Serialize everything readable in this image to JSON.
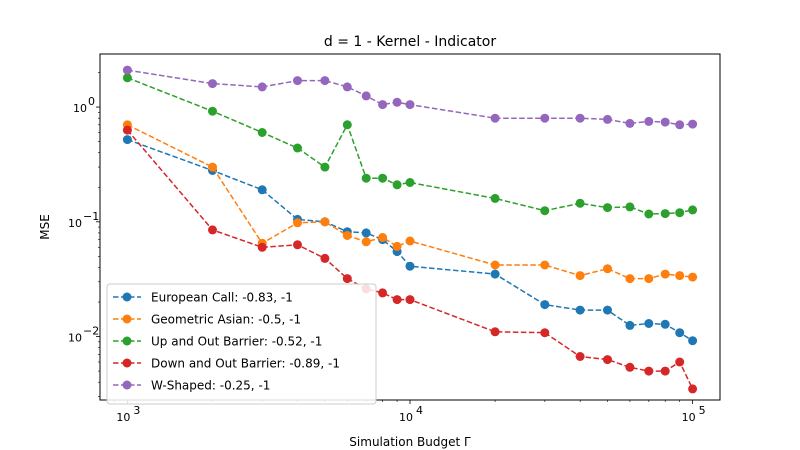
{
  "chart_data": {
    "type": "line",
    "title": "d = 1 - Kernel - Indicator",
    "xlabel": "Simulation Budget Γ",
    "ylabel": "MSE",
    "xscale": "log",
    "yscale": "log",
    "xlim": [
      800,
      125000
    ],
    "ylim": [
      0.0028,
      2.9
    ],
    "x_ticks": [
      {
        "value": 1000,
        "mantissa": "10",
        "exponent": "3"
      },
      {
        "value": 10000,
        "mantissa": "10",
        "exponent": "4"
      },
      {
        "value": 100000,
        "mantissa": "10",
        "exponent": "5"
      }
    ],
    "y_ticks": [
      {
        "value": 0.01,
        "mantissa": "10",
        "exponent": "−2"
      },
      {
        "value": 0.1,
        "mantissa": "10",
        "exponent": "−1"
      },
      {
        "value": 1,
        "mantissa": "10",
        "exponent": "0"
      }
    ],
    "grid": false,
    "legend_position": "lower-left",
    "x": [
      1000,
      2000,
      3000,
      4000,
      5000,
      6000,
      7000,
      8000,
      9000,
      10000,
      20000,
      30000,
      40000,
      50000,
      60000,
      70000,
      80000,
      90000,
      100000
    ],
    "series": [
      {
        "name": "European Call: -0.83, -1",
        "color": "#1f77b4",
        "values": [
          0.52,
          0.28,
          0.19,
          0.105,
          0.1,
          0.082,
          0.08,
          0.07,
          0.055,
          0.041,
          0.035,
          0.019,
          0.017,
          0.017,
          0.0125,
          0.013,
          0.0128,
          0.0108,
          0.0092
        ]
      },
      {
        "name": "Geometric Asian: -0.5, -1",
        "color": "#ff7f0e",
        "values": [
          0.7,
          0.3,
          0.065,
          0.098,
          0.1,
          0.076,
          0.067,
          0.073,
          0.061,
          0.068,
          0.042,
          0.042,
          0.034,
          0.039,
          0.032,
          0.032,
          0.035,
          0.034,
          0.033
        ]
      },
      {
        "name": "Up and Out Barrier: -0.52, -1",
        "color": "#2ca02c",
        "values": [
          1.8,
          0.92,
          0.6,
          0.44,
          0.3,
          0.7,
          0.24,
          0.24,
          0.21,
          0.22,
          0.16,
          0.125,
          0.145,
          0.133,
          0.135,
          0.117,
          0.118,
          0.12,
          0.127
        ]
      },
      {
        "name": "Down and Out Barrier: -0.89, -1",
        "color": "#d62728",
        "values": [
          0.63,
          0.085,
          0.06,
          0.063,
          0.048,
          0.032,
          0.026,
          0.024,
          0.021,
          0.021,
          0.011,
          0.0108,
          0.0067,
          0.0063,
          0.0054,
          0.005,
          0.005,
          0.006,
          0.0035
        ]
      },
      {
        "name": "W-Shaped: -0.25, -1",
        "color": "#9467bd",
        "values": [
          2.1,
          1.6,
          1.5,
          1.7,
          1.7,
          1.5,
          1.25,
          1.05,
          1.1,
          1.05,
          0.8,
          0.8,
          0.8,
          0.78,
          0.72,
          0.75,
          0.74,
          0.7,
          0.71
        ]
      }
    ]
  }
}
